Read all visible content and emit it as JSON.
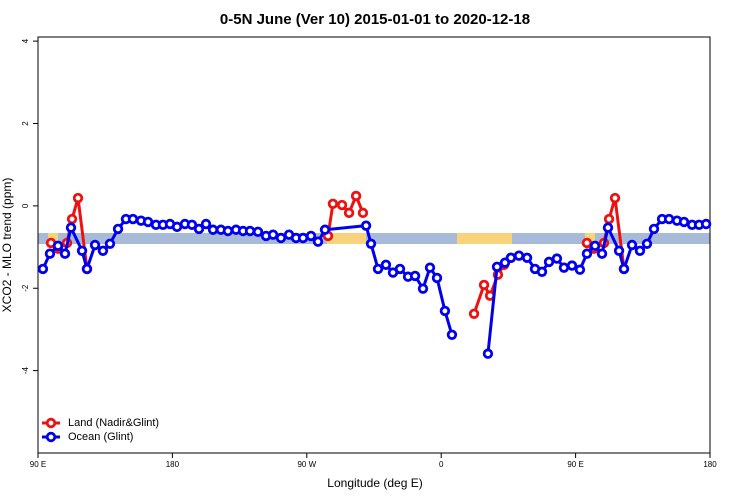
{
  "chart_data": {
    "type": "line",
    "title": "0-5N June (Ver 10)   2015-01-01 to 2020-12-18",
    "x_label": "Longitude (deg E)",
    "y_label": "XCO2 - MLO trend (ppm)",
    "xlim": [
      90,
      540
    ],
    "ylim": [
      -6,
      4.1
    ],
    "xticks": [
      {
        "value": 90,
        "label": "90 E"
      },
      {
        "value": 180,
        "label": "180"
      },
      {
        "value": 270,
        "label": "90 W"
      },
      {
        "value": 360,
        "label": "0"
      },
      {
        "value": 450,
        "label": "90 E"
      },
      {
        "value": 540,
        "label": "180"
      }
    ],
    "yticks": [
      -4,
      -2,
      0,
      2,
      4
    ],
    "legend": "bottom-left",
    "series": [
      {
        "name": "Land (Nadir&Glint)",
        "color": "#ee1111",
        "x": [
          98.7,
          103.4,
          109.4,
          112.8,
          116.8,
          122.8,
          null,
          284.2,
          287.5,
          293.6,
          298.3,
          303.0,
          307.6,
          null,
          382.0,
          388.7,
          392.7,
          398.0,
          402.1,
          406.7,
          null,
          457.6,
          462.3,
          469.0,
          472.4,
          476.4,
          482.4
        ],
        "values": [
          -0.9,
          -1.04,
          -0.9,
          -0.32,
          0.19,
          -1.53,
          null,
          -0.73,
          0.05,
          0.02,
          -0.17,
          0.24,
          -0.17,
          null,
          -2.62,
          -1.92,
          -2.18,
          -1.67,
          -1.43,
          -1.26,
          null,
          -0.9,
          -1.04,
          -0.9,
          -0.32,
          0.19,
          -1.53
        ]
      },
      {
        "name": "Ocean (Glint)",
        "color": "#0000ee",
        "x": [
          93.3,
          98.0,
          103.4,
          108.1,
          112.1,
          119.5,
          122.8,
          128.2,
          133.5,
          138.2,
          143.6,
          148.9,
          153.6,
          159.0,
          163.7,
          169.0,
          173.7,
          178.4,
          183.1,
          188.4,
          193.1,
          197.8,
          202.5,
          207.2,
          212.5,
          217.2,
          222.6,
          227.3,
          232.0,
          237.3,
          242.7,
          247.4,
          252.7,
          258.1,
          262.8,
          267.5,
          272.8,
          277.5,
          282.2,
          309.7,
          313.0,
          317.7,
          323.0,
          327.7,
          332.4,
          337.8,
          342.5,
          347.8,
          352.5,
          357.2,
          362.5,
          367.2,
          null,
          391.3,
          397.4,
          402.7,
          406.7,
          412.1,
          417.5,
          422.8,
          427.5,
          432.2,
          437.5,
          442.2,
          447.6,
          452.9,
          457.6,
          463.0,
          467.7,
          471.7,
          479.1,
          482.4,
          487.8,
          493.1,
          497.8,
          502.5,
          507.9,
          512.6,
          517.9,
          522.6,
          528.0,
          532.7,
          537.4
        ],
        "values": [
          -1.53,
          -1.16,
          -0.97,
          -1.16,
          -0.53,
          -1.09,
          -1.53,
          -0.95,
          -1.09,
          -0.92,
          -0.56,
          -0.32,
          -0.32,
          -0.36,
          -0.39,
          -0.46,
          -0.46,
          -0.44,
          -0.51,
          -0.44,
          -0.46,
          -0.56,
          -0.44,
          -0.58,
          -0.58,
          -0.61,
          -0.58,
          -0.61,
          -0.61,
          -0.63,
          -0.73,
          -0.7,
          -0.78,
          -0.7,
          -0.78,
          -0.78,
          -0.73,
          -0.87,
          -0.58,
          -0.48,
          -0.92,
          -1.53,
          -1.43,
          -1.62,
          -1.53,
          -1.72,
          -1.7,
          -2.01,
          -1.5,
          -1.75,
          -2.55,
          -3.13,
          null,
          -3.59,
          -1.48,
          -1.38,
          -1.26,
          -1.21,
          -1.26,
          -1.53,
          -1.6,
          -1.36,
          -1.28,
          -1.5,
          -1.45,
          -1.55,
          -1.16,
          -0.97,
          -1.16,
          -0.53,
          -1.09,
          -1.53,
          -0.95,
          -1.09,
          -0.92,
          -0.56,
          -0.32,
          -0.32,
          -0.36,
          -0.39,
          -0.46,
          -0.46,
          -0.44
        ]
      }
    ]
  }
}
